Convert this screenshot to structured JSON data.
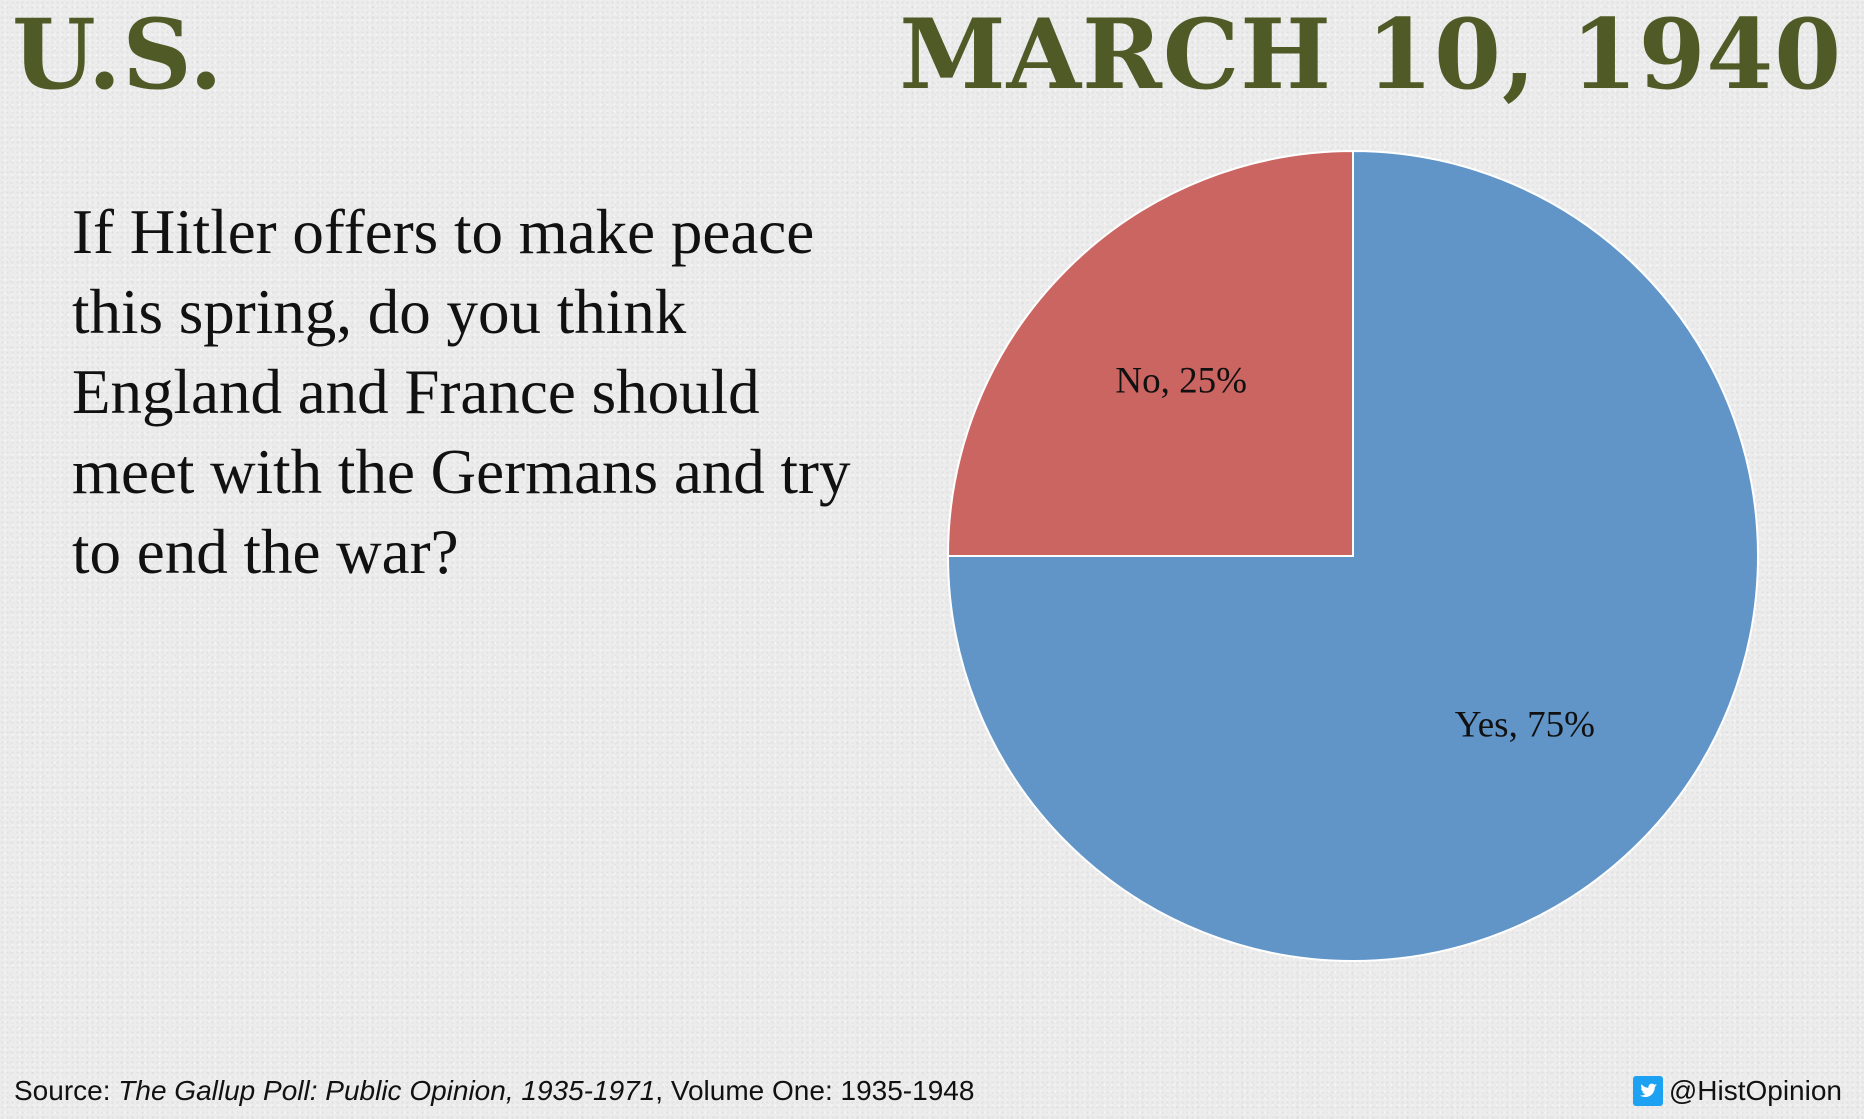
{
  "header": {
    "country": "U.S.",
    "date": "MARCH 10, 1940",
    "color": "#4f5a26"
  },
  "question": "If Hitler offers to make peace this spring, do you think England and France should meet with the Germans and try to end the war?",
  "chart_data": {
    "type": "pie",
    "title": "",
    "slices": [
      {
        "label": "Yes",
        "value": 75,
        "display": "Yes, 75%",
        "color": "#6195c8"
      },
      {
        "label": "No",
        "value": 25,
        "display": "No, 25%",
        "color": "#cb6561"
      }
    ],
    "start_angle_deg": 0,
    "direction": "clockwise"
  },
  "footer": {
    "source_prefix": "Source: ",
    "source_title": "The Gallup Poll: Public Opinion, 1935-1971",
    "source_suffix": ", Volume One: 1935-1948",
    "handle": "@HistOpinion",
    "handle_icon": "twitter-icon",
    "icon_color": "#1da1f2"
  }
}
